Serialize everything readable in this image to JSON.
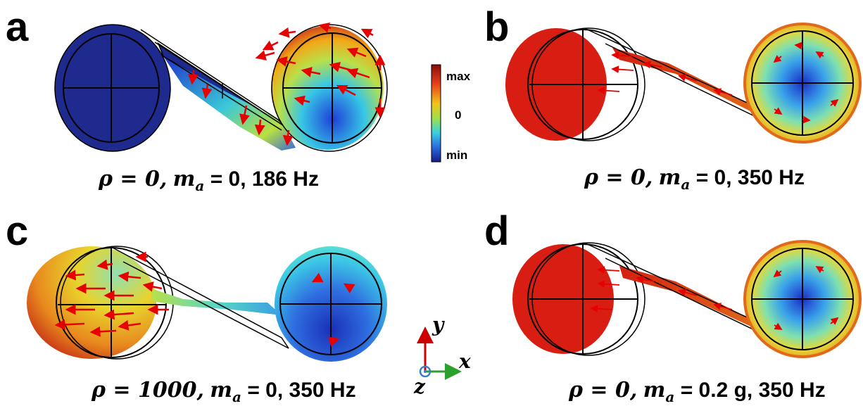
{
  "panels": {
    "a": {
      "letter": "a",
      "cap_rho": "ρ = 0,",
      "cap_m": "m",
      "cap_sub": "a",
      "cap_rest": " = 0, 186 Hz"
    },
    "b": {
      "letter": "b",
      "cap_rho": "ρ = 0,",
      "cap_m": "m",
      "cap_sub": "a",
      "cap_rest": " = 0, 350 Hz"
    },
    "c": {
      "letter": "c",
      "cap_rho": "ρ = 1000,",
      "cap_m": "m",
      "cap_sub": "a",
      "cap_rest": " = 0, 350 Hz"
    },
    "d": {
      "letter": "d",
      "cap_rho": "ρ = 0,",
      "cap_m": "m",
      "cap_sub": "a",
      "cap_rest": " = 0.2 g, 350 Hz"
    }
  },
  "colorbar": {
    "max": "max",
    "zero": "0",
    "min": "min"
  },
  "axes": {
    "x": "x",
    "y": "y",
    "z": "z"
  },
  "colors": {
    "arrow": "#e60000",
    "axis_x": "#2ca02c",
    "axis_y": "#cc0000",
    "axis_z": "#3a7fc1"
  }
}
